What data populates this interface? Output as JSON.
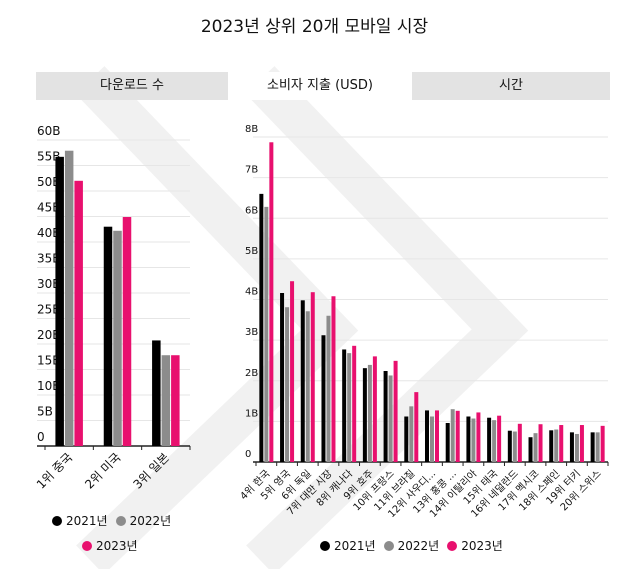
{
  "title": "2023년 상위 20개 모바일 시장",
  "tabs": [
    {
      "label": "다운로드 수",
      "active": false
    },
    {
      "label": "소비자 지출 (USD)",
      "active": true
    },
    {
      "label": "시간",
      "active": false
    }
  ],
  "colors": {
    "2021년": "#000000",
    "2022년": "#8c8c8c",
    "2023년": "#e8106e"
  },
  "chart_data": [
    {
      "type": "bar",
      "categories": [
        "1위 중국",
        "2위 미국",
        "3위 일본"
      ],
      "series": [
        {
          "name": "2021년",
          "values": [
            56.7,
            43.0,
            20.7
          ]
        },
        {
          "name": "2022년",
          "values": [
            57.9,
            42.2,
            17.8
          ]
        },
        {
          "name": "2023년",
          "values": [
            52.0,
            44.9,
            17.8
          ]
        }
      ],
      "ylim": [
        0,
        60
      ],
      "yticks": [
        0,
        5,
        10,
        15,
        20,
        25,
        30,
        35,
        40,
        45,
        50,
        55,
        60
      ],
      "ytick_labels": [
        "0",
        "5B",
        "10B",
        "15B",
        "20B",
        "25B",
        "30B",
        "35B",
        "40B",
        "45B",
        "50B",
        "55B",
        "60B"
      ],
      "grid": true,
      "legend": "bottom",
      "legend_labels": [
        "2021년",
        "2022년",
        "2023년"
      ]
    },
    {
      "type": "bar",
      "categories": [
        "4위 한국",
        "5위 영국",
        "6위 독일",
        "7위 대만 시장",
        "8위 캐나다",
        "9위 호주",
        "10위 프랑스",
        "11위 브라질",
        "12위 사우디...",
        "13위 홍콩 ...",
        "14위 이탈리아",
        "15위 태국",
        "16위 네덜란드",
        "17위 멕시코",
        "18위 스페인",
        "19위 터키",
        "20위 스위스"
      ],
      "series": [
        {
          "name": "2021년",
          "values": [
            6.6,
            4.16,
            3.98,
            3.12,
            2.77,
            2.31,
            2.24,
            1.12,
            1.27,
            0.96,
            1.12,
            1.09,
            0.77,
            0.61,
            0.78,
            0.73,
            0.73
          ]
        },
        {
          "name": "2022년",
          "values": [
            6.28,
            3.81,
            3.71,
            3.6,
            2.68,
            2.39,
            2.13,
            1.37,
            1.12,
            1.3,
            1.07,
            1.03,
            0.75,
            0.71,
            0.8,
            0.69,
            0.73
          ]
        },
        {
          "name": "2023년",
          "values": [
            7.87,
            4.45,
            4.18,
            4.08,
            2.86,
            2.6,
            2.49,
            1.72,
            1.27,
            1.26,
            1.22,
            1.14,
            0.94,
            0.93,
            0.91,
            0.91,
            0.89
          ]
        }
      ],
      "ylim": [
        0,
        8
      ],
      "yticks": [
        0,
        1,
        2,
        3,
        4,
        5,
        6,
        7,
        8
      ],
      "ytick_labels": [
        "0",
        "1B",
        "2B",
        "3B",
        "4B",
        "5B",
        "6B",
        "7B",
        "8B"
      ],
      "grid": true,
      "legend": "bottom",
      "legend_labels": [
        "2021년",
        "2022년",
        "2023년"
      ]
    }
  ]
}
